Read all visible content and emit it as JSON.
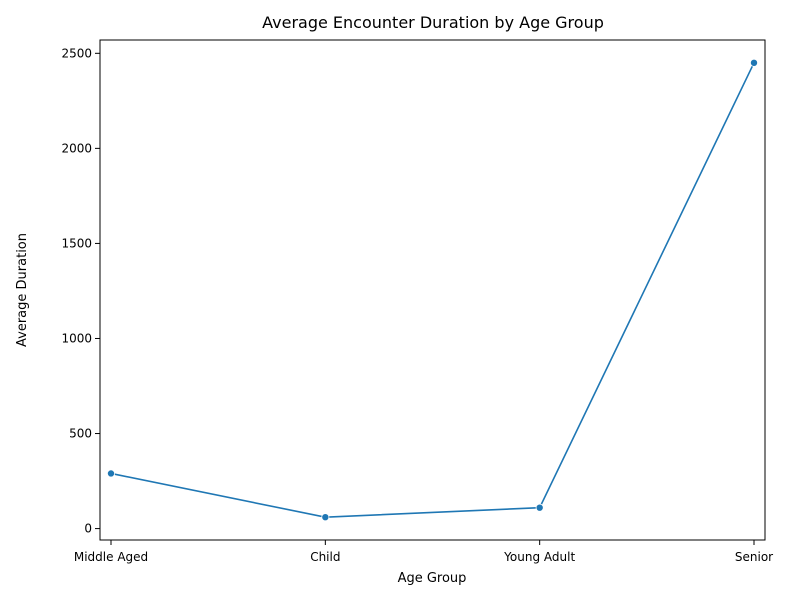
{
  "chart_data": {
    "type": "line",
    "title": "Average Encounter Duration by Age Group",
    "xlabel": "Age Group",
    "ylabel": "Average Duration",
    "categories": [
      "Middle Aged",
      "Child",
      "Young Adult",
      "Senior"
    ],
    "series": [
      {
        "values": [
          290,
          60,
          110,
          2450
        ],
        "color": "#1f77b4",
        "marker": "circle"
      }
    ],
    "yticks": [
      0,
      500,
      1000,
      1500,
      2000,
      2500
    ],
    "ylim": [
      -60,
      2570
    ],
    "grid": false,
    "legend": "none"
  }
}
